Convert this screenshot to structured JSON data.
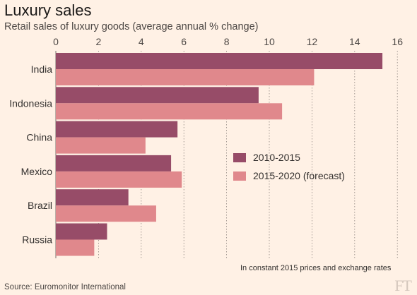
{
  "title": "Luxury sales",
  "subtitle": "Retail sales of luxury goods (average annual % change)",
  "note": "In constant 2015 prices and exchange rates",
  "source": "Source: Euromonitor International",
  "logo": "FT",
  "colors": {
    "background": "#fff1e5",
    "series1": "#974c68",
    "series2": "#e0888c",
    "grid": "#8e8580"
  },
  "chart_data": {
    "type": "bar",
    "orientation": "horizontal",
    "categories": [
      "India",
      "Indonesia",
      "China",
      "Mexico",
      "Brazil",
      "Russia"
    ],
    "series": [
      {
        "name": "2010-2015",
        "values": [
          15.3,
          9.5,
          5.7,
          5.4,
          3.4,
          2.4
        ]
      },
      {
        "name": "2015-2020 (forecast)",
        "values": [
          12.1,
          10.6,
          4.2,
          5.9,
          4.7,
          1.8
        ]
      }
    ],
    "xticks": [
      0,
      2,
      4,
      6,
      8,
      10,
      12,
      14,
      16
    ],
    "xlim": [
      0,
      16
    ],
    "grid": true,
    "legend_position": "center-right"
  }
}
